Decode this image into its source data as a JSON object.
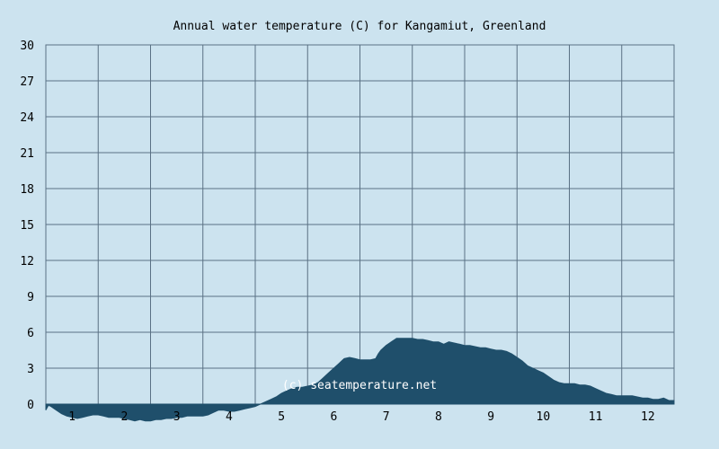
{
  "chart_data": {
    "type": "area",
    "title": "Annual water temperature (C) for Kangamiut, Greenland",
    "xlabel": "",
    "ylabel": "",
    "xlim": [
      0.5,
      12.5
    ],
    "ylim": [
      0,
      30
    ],
    "x_ticks": [
      "1",
      "2",
      "3",
      "4",
      "5",
      "6",
      "7",
      "8",
      "9",
      "10",
      "11",
      "12"
    ],
    "y_ticks": [
      "0",
      "3",
      "6",
      "9",
      "12",
      "15",
      "18",
      "21",
      "24",
      "27",
      "30"
    ],
    "grid": true,
    "legend": "none",
    "watermark": "(c) seatemperature.net",
    "colors": {
      "background": "#cce3ef",
      "fill": "#1f4f6b",
      "grid": "#5a7184",
      "text": "#000000"
    },
    "series": [
      {
        "x": [
          0.5,
          0.55,
          0.6,
          0.7,
          0.8,
          0.9,
          1.0,
          1.1,
          1.2,
          1.3,
          1.4,
          1.5,
          1.6,
          1.7,
          1.8,
          1.9,
          2.0,
          2.1,
          2.2,
          2.3,
          2.4,
          2.5,
          2.6,
          2.7,
          2.8,
          2.9,
          3.0,
          3.1,
          3.2,
          3.3,
          3.4,
          3.5,
          3.6,
          3.7,
          3.8,
          3.9,
          4.0,
          4.1,
          4.2,
          4.3,
          4.4,
          4.5,
          4.55,
          4.6,
          4.7,
          4.8,
          4.9,
          5.0,
          5.1,
          5.2,
          5.3,
          5.4,
          5.5,
          5.6,
          5.7,
          5.8,
          5.9,
          6.0,
          6.1,
          6.2,
          6.3,
          6.4,
          6.5,
          6.6,
          6.7,
          6.8,
          6.85,
          6.9,
          7.0,
          7.1,
          7.2,
          7.3,
          7.4,
          7.5,
          7.6,
          7.7,
          7.8,
          7.9,
          8.0,
          8.1,
          8.2,
          8.3,
          8.4,
          8.5,
          8.6,
          8.7,
          8.8,
          8.9,
          9.0,
          9.1,
          9.2,
          9.3,
          9.4,
          9.5,
          9.6,
          9.7,
          9.8,
          9.9,
          10.0,
          10.1,
          10.2,
          10.3,
          10.4,
          10.5,
          10.6,
          10.7,
          10.8,
          10.9,
          11.0,
          11.1,
          11.2,
          11.3,
          11.4,
          11.5,
          11.6,
          11.7,
          11.8,
          11.9,
          12.0,
          12.1,
          12.2,
          12.3,
          12.4,
          12.5
        ],
        "values": [
          -0.5,
          -0.1,
          -0.2,
          -0.5,
          -0.8,
          -1.0,
          -1.1,
          -1.2,
          -1.1,
          -1.0,
          -0.9,
          -0.9,
          -1.0,
          -1.1,
          -1.1,
          -1.1,
          -1.2,
          -1.3,
          -1.4,
          -1.3,
          -1.4,
          -1.4,
          -1.3,
          -1.3,
          -1.2,
          -1.2,
          -1.1,
          -1.1,
          -1.0,
          -1.0,
          -1.0,
          -1.0,
          -0.9,
          -0.7,
          -0.5,
          -0.5,
          -0.6,
          -0.6,
          -0.5,
          -0.4,
          -0.3,
          -0.2,
          -0.1,
          0.0,
          0.2,
          0.4,
          0.6,
          0.9,
          1.1,
          1.3,
          1.4,
          1.4,
          1.5,
          1.6,
          1.8,
          2.2,
          2.6,
          3.0,
          3.4,
          3.8,
          3.9,
          3.8,
          3.7,
          3.7,
          3.7,
          3.8,
          4.2,
          4.5,
          4.9,
          5.2,
          5.5,
          5.5,
          5.5,
          5.5,
          5.4,
          5.4,
          5.3,
          5.2,
          5.2,
          5.0,
          5.2,
          5.1,
          5.0,
          4.9,
          4.9,
          4.8,
          4.7,
          4.7,
          4.6,
          4.5,
          4.5,
          4.4,
          4.2,
          3.9,
          3.6,
          3.2,
          3.0,
          2.8,
          2.6,
          2.3,
          2.0,
          1.8,
          1.7,
          1.7,
          1.7,
          1.6,
          1.6,
          1.5,
          1.3,
          1.1,
          0.9,
          0.8,
          0.7,
          0.7,
          0.7,
          0.7,
          0.6,
          0.5,
          0.5,
          0.4,
          0.4,
          0.5,
          0.3,
          0.3
        ]
      }
    ]
  }
}
